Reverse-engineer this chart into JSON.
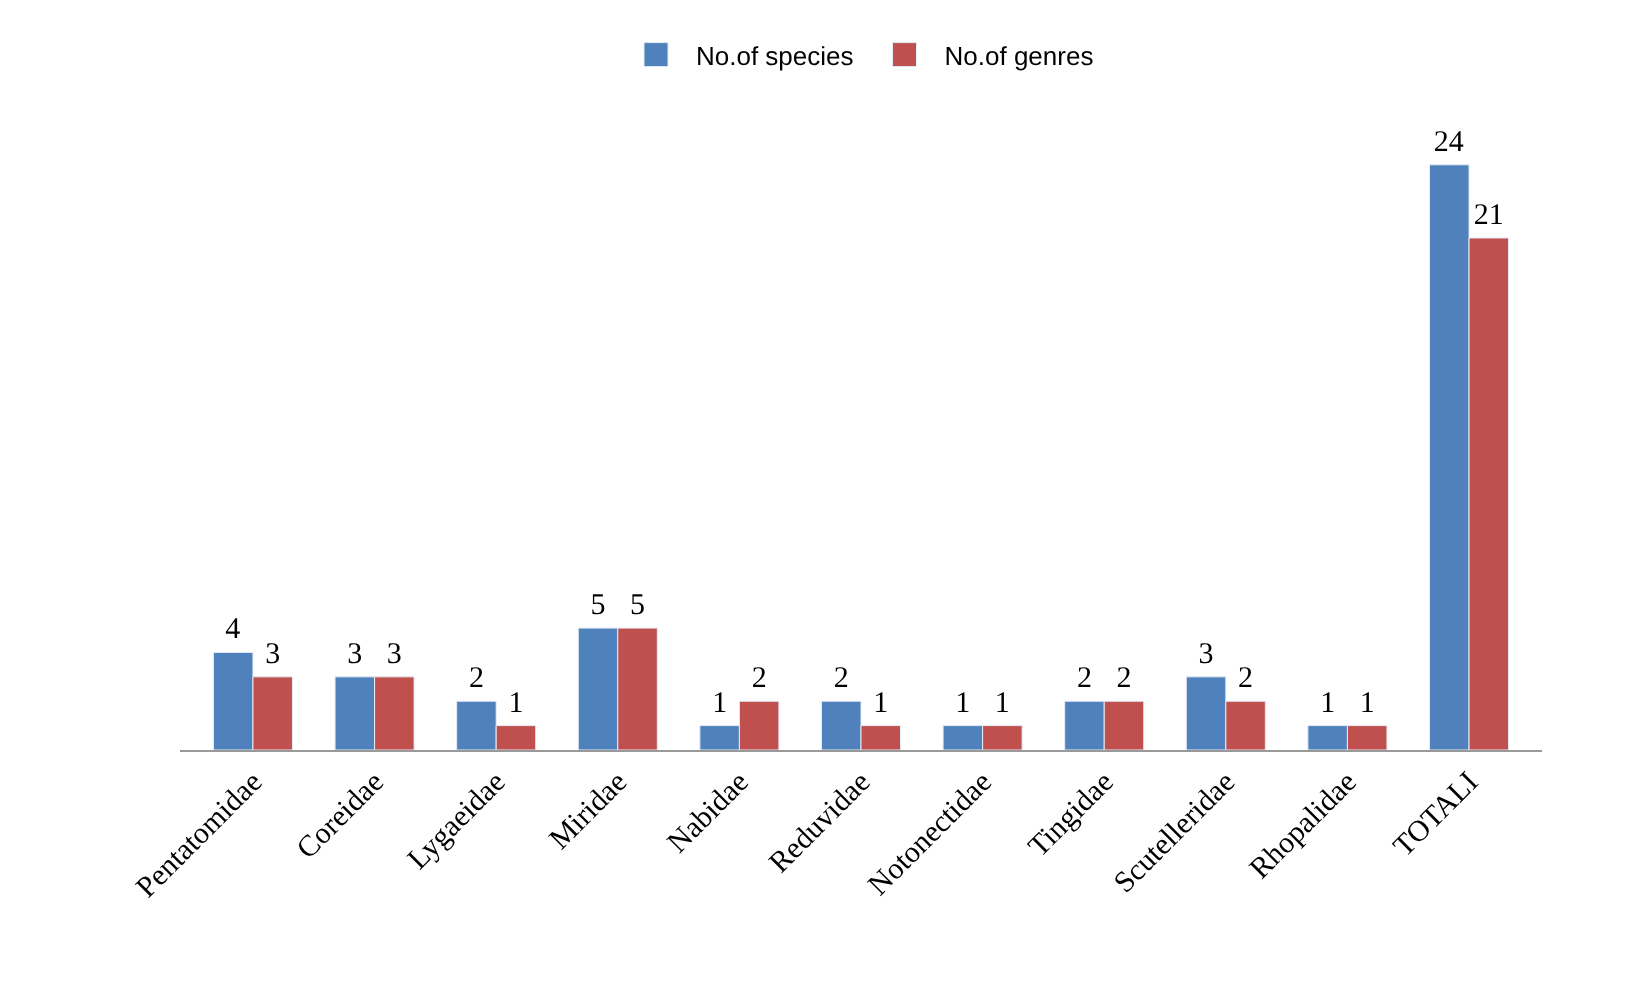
{
  "chart_data": {
    "type": "bar",
    "categories": [
      "Pentatomidae",
      "Coreidae",
      "Lygaeidae",
      "Miridae",
      "Nabidae",
      "Reduvidae",
      "Notonectidae",
      "Tingidae",
      "Scutelleridae",
      "Rhopalidae",
      "TOTALI"
    ],
    "series": [
      {
        "name": "No.of species",
        "color": "#4f81bd",
        "values": [
          4,
          3,
          2,
          5,
          1,
          2,
          1,
          2,
          3,
          1,
          24
        ]
      },
      {
        "name": "No.of genres",
        "color": "#c0504d",
        "values": [
          3,
          3,
          1,
          5,
          2,
          1,
          1,
          2,
          2,
          1,
          21
        ]
      }
    ],
    "data_labels": true,
    "legend": "top"
  }
}
